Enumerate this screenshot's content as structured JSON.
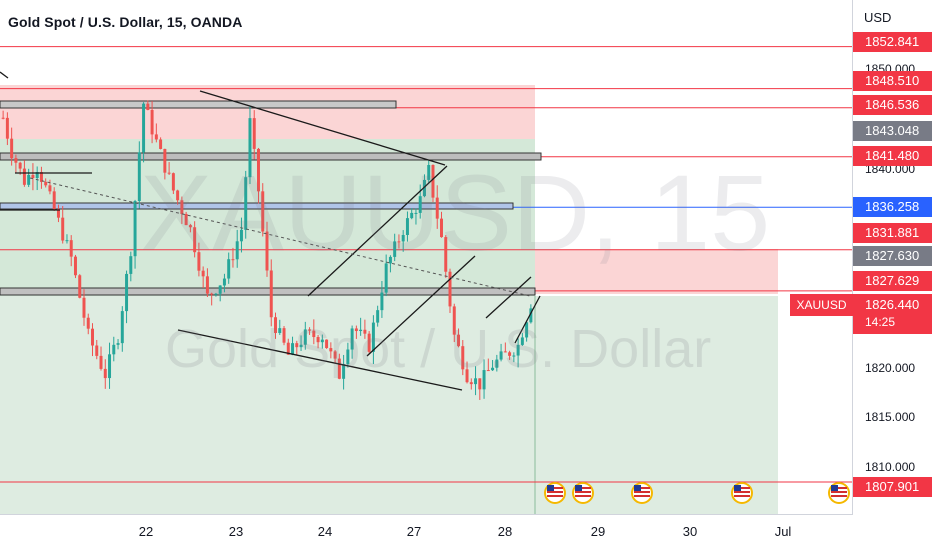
{
  "header": {
    "title": "Gold Spot / U.S. Dollar, 15, OANDA"
  },
  "watermark": {
    "symbol": "XAUUSD, 15",
    "description": "Gold Spot / U.S. Dollar"
  },
  "axis": {
    "currency": "USD",
    "ticks": [
      "1850.000",
      "1840.000",
      "1820.000",
      "1815.000",
      "1810.000"
    ],
    "x_labels": [
      "22",
      "23",
      "24",
      "27",
      "28",
      "29",
      "30",
      "Jul"
    ]
  },
  "price_tags": [
    {
      "value": "1852.841",
      "color": "#f23645"
    },
    {
      "value": "1848.510",
      "color": "#f23645"
    },
    {
      "value": "1846.536",
      "color": "#f23645"
    },
    {
      "value": "1843.048",
      "color": "#787b86"
    },
    {
      "value": "1841.480",
      "color": "#f23645"
    },
    {
      "value": "1836.258",
      "color": "#2962ff"
    },
    {
      "value": "1831.881",
      "color": "#f23645"
    },
    {
      "value": "1827.630",
      "color": "#787b86"
    },
    {
      "value": "1827.629",
      "color": "#f23645"
    },
    {
      "value": "1807.901",
      "color": "#f23645"
    }
  ],
  "last_price": {
    "symbol": "XAUUSD",
    "value": "1826.440",
    "countdown": "14:25"
  },
  "colors": {
    "up": "#26a69a",
    "down": "#ef5350",
    "level": "#f23645",
    "blue_level": "#2962ff"
  },
  "icons": [
    "us-flag-icon",
    "us-flag-icon",
    "us-flag-icon",
    "us-flag-icon",
    "us-flag-icon"
  ],
  "chart_data": {
    "type": "candlestick",
    "title": "Gold Spot / U.S. Dollar, 15, OANDA",
    "ylim": [
      1804.5,
      1856
    ],
    "x_categories": [
      "22",
      "23",
      "24",
      "27",
      "28",
      "29",
      "30",
      "Jul"
    ],
    "horizontal_levels": [
      1852.841,
      1848.51,
      1846.536,
      1841.48,
      1836.258,
      1831.881,
      1827.629,
      1807.901
    ],
    "price_path": [
      [
        0,
        1845.5
      ],
      [
        2,
        1842
      ],
      [
        5,
        1839
      ],
      [
        8,
        1840.5
      ],
      [
        12,
        1836
      ],
      [
        16,
        1831
      ],
      [
        20,
        1823
      ],
      [
        24,
        1819
      ],
      [
        27,
        1823
      ],
      [
        30,
        1832
      ],
      [
        33,
        1847
      ],
      [
        36,
        1843
      ],
      [
        40,
        1838
      ],
      [
        44,
        1834
      ],
      [
        48,
        1827
      ],
      [
        52,
        1829
      ],
      [
        56,
        1834
      ],
      [
        58,
        1845
      ],
      [
        60,
        1838
      ],
      [
        63,
        1825
      ],
      [
        67,
        1821
      ],
      [
        71,
        1823
      ],
      [
        75,
        1823
      ],
      [
        79,
        1819
      ],
      [
        82,
        1824
      ],
      [
        86,
        1822
      ],
      [
        90,
        1830
      ],
      [
        94,
        1834
      ],
      [
        98,
        1837
      ],
      [
        100,
        1840
      ],
      [
        103,
        1833
      ],
      [
        106,
        1823
      ],
      [
        109,
        1819
      ],
      [
        112,
        1818
      ],
      [
        115,
        1820
      ],
      [
        118,
        1821
      ],
      [
        121,
        1822
      ],
      [
        124,
        1826.44
      ]
    ]
  }
}
